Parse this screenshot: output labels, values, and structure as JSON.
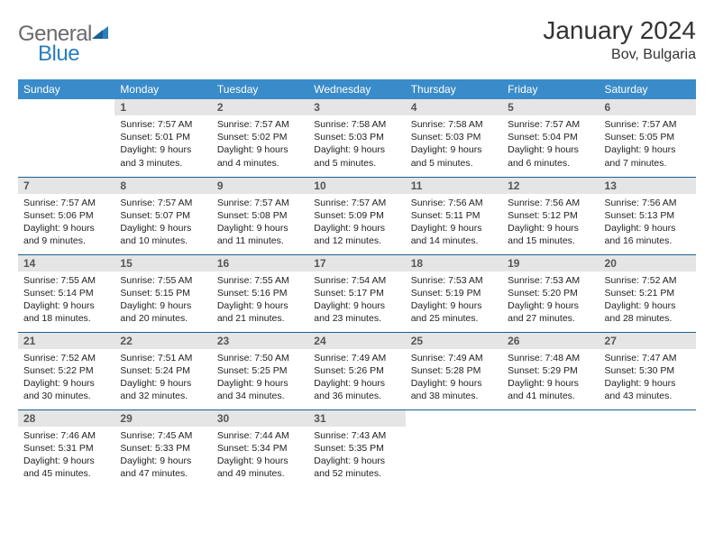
{
  "logo": {
    "text1": "General",
    "text2": "Blue"
  },
  "title": "January 2024",
  "location": "Bov, Bulgaria",
  "weekdays": [
    "Sunday",
    "Monday",
    "Tuesday",
    "Wednesday",
    "Thursday",
    "Friday",
    "Saturday"
  ],
  "colors": {
    "header_bg": "#3a8bc9",
    "header_text": "#ffffff",
    "daynum_bg": "#e5e5e5",
    "border": "#1a5f8f",
    "logo_gray": "#6a6a6a",
    "logo_blue": "#2a7fbf"
  },
  "weeks": [
    [
      {
        "n": "",
        "lines": []
      },
      {
        "n": "1",
        "lines": [
          "Sunrise: 7:57 AM",
          "Sunset: 5:01 PM",
          "Daylight: 9 hours",
          "and 3 minutes."
        ]
      },
      {
        "n": "2",
        "lines": [
          "Sunrise: 7:57 AM",
          "Sunset: 5:02 PM",
          "Daylight: 9 hours",
          "and 4 minutes."
        ]
      },
      {
        "n": "3",
        "lines": [
          "Sunrise: 7:58 AM",
          "Sunset: 5:03 PM",
          "Daylight: 9 hours",
          "and 5 minutes."
        ]
      },
      {
        "n": "4",
        "lines": [
          "Sunrise: 7:58 AM",
          "Sunset: 5:03 PM",
          "Daylight: 9 hours",
          "and 5 minutes."
        ]
      },
      {
        "n": "5",
        "lines": [
          "Sunrise: 7:57 AM",
          "Sunset: 5:04 PM",
          "Daylight: 9 hours",
          "and 6 minutes."
        ]
      },
      {
        "n": "6",
        "lines": [
          "Sunrise: 7:57 AM",
          "Sunset: 5:05 PM",
          "Daylight: 9 hours",
          "and 7 minutes."
        ]
      }
    ],
    [
      {
        "n": "7",
        "lines": [
          "Sunrise: 7:57 AM",
          "Sunset: 5:06 PM",
          "Daylight: 9 hours",
          "and 9 minutes."
        ]
      },
      {
        "n": "8",
        "lines": [
          "Sunrise: 7:57 AM",
          "Sunset: 5:07 PM",
          "Daylight: 9 hours",
          "and 10 minutes."
        ]
      },
      {
        "n": "9",
        "lines": [
          "Sunrise: 7:57 AM",
          "Sunset: 5:08 PM",
          "Daylight: 9 hours",
          "and 11 minutes."
        ]
      },
      {
        "n": "10",
        "lines": [
          "Sunrise: 7:57 AM",
          "Sunset: 5:09 PM",
          "Daylight: 9 hours",
          "and 12 minutes."
        ]
      },
      {
        "n": "11",
        "lines": [
          "Sunrise: 7:56 AM",
          "Sunset: 5:11 PM",
          "Daylight: 9 hours",
          "and 14 minutes."
        ]
      },
      {
        "n": "12",
        "lines": [
          "Sunrise: 7:56 AM",
          "Sunset: 5:12 PM",
          "Daylight: 9 hours",
          "and 15 minutes."
        ]
      },
      {
        "n": "13",
        "lines": [
          "Sunrise: 7:56 AM",
          "Sunset: 5:13 PM",
          "Daylight: 9 hours",
          "and 16 minutes."
        ]
      }
    ],
    [
      {
        "n": "14",
        "lines": [
          "Sunrise: 7:55 AM",
          "Sunset: 5:14 PM",
          "Daylight: 9 hours",
          "and 18 minutes."
        ]
      },
      {
        "n": "15",
        "lines": [
          "Sunrise: 7:55 AM",
          "Sunset: 5:15 PM",
          "Daylight: 9 hours",
          "and 20 minutes."
        ]
      },
      {
        "n": "16",
        "lines": [
          "Sunrise: 7:55 AM",
          "Sunset: 5:16 PM",
          "Daylight: 9 hours",
          "and 21 minutes."
        ]
      },
      {
        "n": "17",
        "lines": [
          "Sunrise: 7:54 AM",
          "Sunset: 5:17 PM",
          "Daylight: 9 hours",
          "and 23 minutes."
        ]
      },
      {
        "n": "18",
        "lines": [
          "Sunrise: 7:53 AM",
          "Sunset: 5:19 PM",
          "Daylight: 9 hours",
          "and 25 minutes."
        ]
      },
      {
        "n": "19",
        "lines": [
          "Sunrise: 7:53 AM",
          "Sunset: 5:20 PM",
          "Daylight: 9 hours",
          "and 27 minutes."
        ]
      },
      {
        "n": "20",
        "lines": [
          "Sunrise: 7:52 AM",
          "Sunset: 5:21 PM",
          "Daylight: 9 hours",
          "and 28 minutes."
        ]
      }
    ],
    [
      {
        "n": "21",
        "lines": [
          "Sunrise: 7:52 AM",
          "Sunset: 5:22 PM",
          "Daylight: 9 hours",
          "and 30 minutes."
        ]
      },
      {
        "n": "22",
        "lines": [
          "Sunrise: 7:51 AM",
          "Sunset: 5:24 PM",
          "Daylight: 9 hours",
          "and 32 minutes."
        ]
      },
      {
        "n": "23",
        "lines": [
          "Sunrise: 7:50 AM",
          "Sunset: 5:25 PM",
          "Daylight: 9 hours",
          "and 34 minutes."
        ]
      },
      {
        "n": "24",
        "lines": [
          "Sunrise: 7:49 AM",
          "Sunset: 5:26 PM",
          "Daylight: 9 hours",
          "and 36 minutes."
        ]
      },
      {
        "n": "25",
        "lines": [
          "Sunrise: 7:49 AM",
          "Sunset: 5:28 PM",
          "Daylight: 9 hours",
          "and 38 minutes."
        ]
      },
      {
        "n": "26",
        "lines": [
          "Sunrise: 7:48 AM",
          "Sunset: 5:29 PM",
          "Daylight: 9 hours",
          "and 41 minutes."
        ]
      },
      {
        "n": "27",
        "lines": [
          "Sunrise: 7:47 AM",
          "Sunset: 5:30 PM",
          "Daylight: 9 hours",
          "and 43 minutes."
        ]
      }
    ],
    [
      {
        "n": "28",
        "lines": [
          "Sunrise: 7:46 AM",
          "Sunset: 5:31 PM",
          "Daylight: 9 hours",
          "and 45 minutes."
        ]
      },
      {
        "n": "29",
        "lines": [
          "Sunrise: 7:45 AM",
          "Sunset: 5:33 PM",
          "Daylight: 9 hours",
          "and 47 minutes."
        ]
      },
      {
        "n": "30",
        "lines": [
          "Sunrise: 7:44 AM",
          "Sunset: 5:34 PM",
          "Daylight: 9 hours",
          "and 49 minutes."
        ]
      },
      {
        "n": "31",
        "lines": [
          "Sunrise: 7:43 AM",
          "Sunset: 5:35 PM",
          "Daylight: 9 hours",
          "and 52 minutes."
        ]
      },
      {
        "n": "",
        "lines": []
      },
      {
        "n": "",
        "lines": []
      },
      {
        "n": "",
        "lines": []
      }
    ]
  ]
}
